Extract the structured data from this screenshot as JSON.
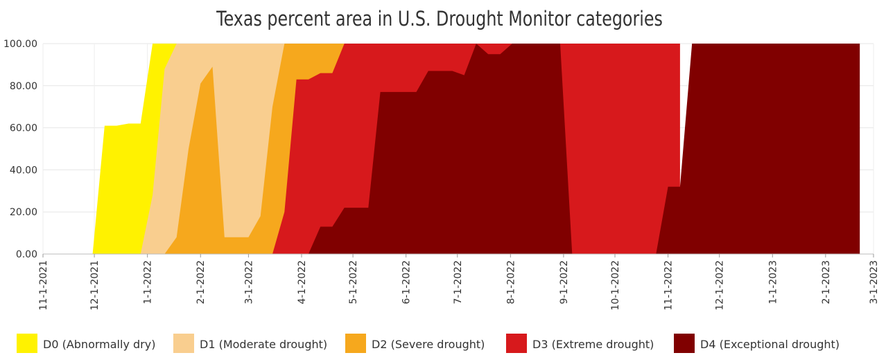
{
  "chart_data": {
    "type": "area",
    "title": "Texas percent area in U.S. Drought Monitor categories",
    "xlabel": "",
    "ylabel": "",
    "ylim": [
      0,
      100
    ],
    "xlim": [
      "2021-11-01",
      "2023-03-01"
    ],
    "y_ticks": [
      "0.00",
      "20.00",
      "40.00",
      "60.00",
      "80.00",
      "100.00"
    ],
    "x_ticks": [
      {
        "date": "2021-11-01",
        "label": "11-1-2021"
      },
      {
        "date": "2021-12-01",
        "label": "12-1-2021"
      },
      {
        "date": "2022-01-01",
        "label": "1-1-2022"
      },
      {
        "date": "2022-02-01",
        "label": "2-1-2022"
      },
      {
        "date": "2022-03-01",
        "label": "3-1-2022"
      },
      {
        "date": "2022-04-01",
        "label": "4-1-2022"
      },
      {
        "date": "2022-05-01",
        "label": "5-1-2022"
      },
      {
        "date": "2022-06-01",
        "label": "6-1-2022"
      },
      {
        "date": "2022-07-01",
        "label": "7-1-2022"
      },
      {
        "date": "2022-08-01",
        "label": "8-1-2022"
      },
      {
        "date": "2022-09-01",
        "label": "9-1-2022"
      },
      {
        "date": "2022-10-01",
        "label": "10-1-2022"
      },
      {
        "date": "2022-11-01",
        "label": "11-1-2022"
      },
      {
        "date": "2022-12-01",
        "label": "12-1-2022"
      },
      {
        "date": "2023-01-01",
        "label": "1-1-2023"
      },
      {
        "date": "2023-02-01",
        "label": "2-1-2023"
      },
      {
        "date": "2023-03-01",
        "label": "3-1-2023"
      }
    ],
    "grid": true,
    "legend_position": "bottom",
    "series": [
      {
        "name": "D0 (Abnormally dry)",
        "color": "#FFF200",
        "points": [
          [
            "2021-11-30",
            0
          ],
          [
            "2021-12-07",
            61
          ],
          [
            "2021-12-14",
            61
          ],
          [
            "2021-12-21",
            62
          ],
          [
            "2021-12-28",
            62
          ],
          [
            "2022-01-04",
            100
          ],
          [
            "2022-01-11",
            100
          ],
          [
            "2022-01-18",
            100
          ],
          [
            "2022-02-27",
            100
          ]
        ]
      },
      {
        "name": "D1 (Moderate drought)",
        "color": "#F9CE8F",
        "points": [
          [
            "2021-12-28",
            0
          ],
          [
            "2022-01-04",
            28
          ],
          [
            "2022-01-11",
            88
          ],
          [
            "2022-01-18",
            100
          ],
          [
            "2022-03-15",
            100
          ],
          [
            "2022-03-22",
            100
          ]
        ]
      },
      {
        "name": "D2 (Severe drought)",
        "color": "#F6A81D",
        "points": [
          [
            "2022-01-04",
            0
          ],
          [
            "2022-01-11",
            0
          ],
          [
            "2022-01-18",
            8
          ],
          [
            "2022-01-25",
            50
          ],
          [
            "2022-02-01",
            81
          ],
          [
            "2022-02-08",
            89
          ],
          [
            "2022-02-15",
            8
          ],
          [
            "2022-02-22",
            8
          ],
          [
            "2022-03-01",
            8
          ],
          [
            "2022-03-08",
            18
          ],
          [
            "2022-03-15",
            70
          ],
          [
            "2022-03-22",
            100
          ],
          [
            "2022-04-19",
            100
          ],
          [
            "2022-04-26",
            100
          ]
        ]
      },
      {
        "name": "D3 (Extreme drought)",
        "color": "#D7191C",
        "points": [
          [
            "2022-03-08",
            0
          ],
          [
            "2022-03-15",
            0
          ],
          [
            "2022-03-22",
            20
          ],
          [
            "2022-03-29",
            83
          ],
          [
            "2022-04-05",
            83
          ],
          [
            "2022-04-12",
            86
          ],
          [
            "2022-04-19",
            86
          ],
          [
            "2022-04-26",
            100
          ],
          [
            "2022-11-08",
            100
          ]
        ]
      },
      {
        "name": "D4 (Exceptional drought)",
        "color": "#800000",
        "points": [
          [
            "2022-04-05",
            0
          ],
          [
            "2022-04-12",
            13
          ],
          [
            "2022-04-19",
            13
          ],
          [
            "2022-04-26",
            22
          ],
          [
            "2022-05-03",
            22
          ],
          [
            "2022-05-10",
            22
          ],
          [
            "2022-05-17",
            77
          ],
          [
            "2022-05-24",
            77
          ],
          [
            "2022-05-31",
            77
          ],
          [
            "2022-06-07",
            77
          ],
          [
            "2022-06-14",
            87
          ],
          [
            "2022-06-21",
            87
          ],
          [
            "2022-06-28",
            87
          ],
          [
            "2022-07-05",
            85
          ],
          [
            "2022-07-12",
            100
          ],
          [
            "2022-07-19",
            95
          ],
          [
            "2022-07-26",
            95
          ],
          [
            "2022-08-02",
            100
          ],
          [
            "2022-08-09",
            100
          ],
          [
            "2022-08-16",
            100
          ],
          [
            "2022-08-23",
            100
          ],
          [
            "2022-08-30",
            100
          ],
          [
            "2022-09-06",
            0
          ],
          [
            "2022-09-13",
            0
          ],
          [
            "2022-09-20",
            0
          ],
          [
            "2022-09-27",
            0
          ],
          [
            "2022-10-04",
            0
          ],
          [
            "2022-10-11",
            0
          ],
          [
            "2022-10-18",
            0
          ],
          [
            "2022-10-25",
            0
          ],
          [
            "2022-11-01",
            32
          ],
          [
            "2022-11-08",
            32
          ],
          [
            "2022-11-15",
            100
          ],
          [
            "2023-02-14",
            100
          ],
          [
            "2023-02-21",
            100
          ]
        ]
      }
    ]
  }
}
